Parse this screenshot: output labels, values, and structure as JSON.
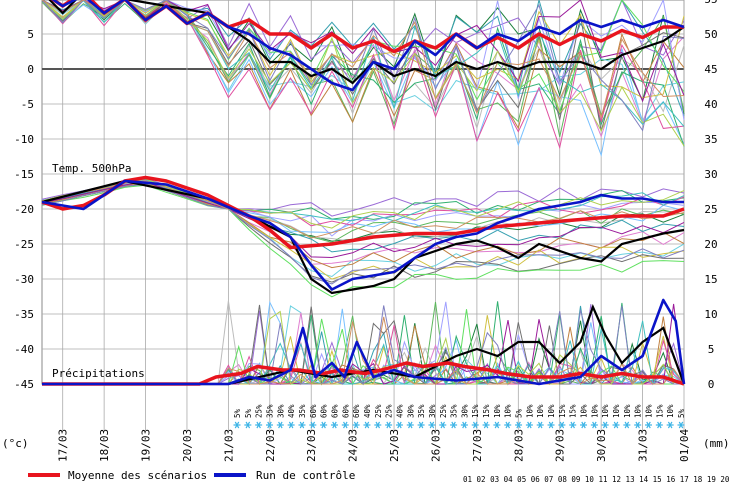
{
  "chart_data": {
    "type": "line",
    "y_left_unit": "(°c)",
    "y_right_unit": "(mm)",
    "y_left_ticks": [
      "5",
      "0",
      "-5",
      "-10",
      "-15",
      "-20",
      "-25",
      "-30",
      "-35",
      "-40",
      "-45"
    ],
    "y_left_range": [
      -45,
      10
    ],
    "y_right_ticks": [
      "55",
      "50",
      "45",
      "40",
      "35",
      "30",
      "25",
      "20",
      "15",
      "10",
      "5",
      "0"
    ],
    "y_right_range": [
      0,
      55
    ],
    "x_dates": [
      "17/03",
      "18/03",
      "19/03",
      "20/03",
      "21/03",
      "22/03",
      "23/03",
      "24/03",
      "25/03",
      "26/03",
      "27/03",
      "28/03",
      "29/03",
      "30/03",
      "31/03",
      "01/04"
    ],
    "x_range_days": [
      0,
      15.5
    ],
    "labels": {
      "temp500": "Temp. 500hPa",
      "precip": "Précipitations"
    },
    "probabilities": [
      "5%",
      "5%",
      "25%",
      "35%",
      "30%",
      "40%",
      "35%",
      "60%",
      "60%",
      "60%",
      "60%",
      "60%",
      "40%",
      "25%",
      "25%",
      "40%",
      "30%",
      "35%",
      "30%",
      "25%",
      "35%",
      "30%",
      "15%",
      "15%",
      "10%",
      "10%",
      "5%",
      "10%",
      "10%",
      "10%",
      "15%",
      "15%",
      "10%",
      "10%",
      "10%",
      "10%",
      "10%",
      "10%",
      "10%",
      "15%",
      "10%",
      "5%"
    ],
    "bottom_numbers": "01 02 03 04 05 06 07 08 09 10 11 12 13 14 15 16 17 18 19 20",
    "series": [
      {
        "name": "Moyenne des scénarios",
        "color": "#e8141e",
        "temp850": [
          [
            0,
            11
          ],
          [
            0.5,
            9
          ],
          [
            1,
            11
          ],
          [
            1.5,
            8
          ],
          [
            2,
            10
          ],
          [
            2.5,
            7
          ],
          [
            3,
            9
          ],
          [
            3.5,
            6.5
          ],
          [
            4,
            8
          ],
          [
            4.5,
            6
          ],
          [
            5,
            7
          ],
          [
            5.5,
            5
          ],
          [
            6,
            5
          ],
          [
            6.5,
            3
          ],
          [
            7,
            5
          ],
          [
            7.5,
            3
          ],
          [
            8,
            4
          ],
          [
            8.5,
            2.5
          ],
          [
            9,
            4
          ],
          [
            9.5,
            3
          ],
          [
            10,
            5
          ],
          [
            10.5,
            3
          ],
          [
            11,
            4.5
          ],
          [
            11.5,
            3
          ],
          [
            12,
            5
          ],
          [
            12.5,
            3.5
          ],
          [
            13,
            5
          ],
          [
            13.5,
            4
          ],
          [
            14,
            5.5
          ],
          [
            14.5,
            4.5
          ],
          [
            15,
            6
          ],
          [
            15.5,
            6
          ]
        ],
        "temp500": [
          [
            0,
            -19
          ],
          [
            0.5,
            -20
          ],
          [
            1,
            -19.5
          ],
          [
            1.5,
            -18
          ],
          [
            2,
            -16
          ],
          [
            2.5,
            -15.5
          ],
          [
            3,
            -16
          ],
          [
            3.5,
            -17
          ],
          [
            4,
            -18
          ],
          [
            4.5,
            -19.5
          ],
          [
            5,
            -21
          ],
          [
            5.5,
            -23
          ],
          [
            6,
            -25.5
          ],
          [
            7,
            -25
          ],
          [
            8,
            -24
          ],
          [
            9,
            -23.5
          ],
          [
            10,
            -23.5
          ],
          [
            11,
            -22.5
          ],
          [
            12,
            -22
          ],
          [
            13,
            -21.5
          ],
          [
            14,
            -21
          ],
          [
            15,
            -21
          ],
          [
            15.5,
            -20
          ]
        ],
        "precip": [
          [
            0,
            0
          ],
          [
            3.8,
            0
          ],
          [
            4.2,
            1
          ],
          [
            4.8,
            1.5
          ],
          [
            5.2,
            2.5
          ],
          [
            5.8,
            2
          ],
          [
            6.2,
            2
          ],
          [
            6.8,
            1.5
          ],
          [
            7.2,
            2
          ],
          [
            7.8,
            1.5
          ],
          [
            8.2,
            2
          ],
          [
            8.8,
            3
          ],
          [
            9.2,
            2.5
          ],
          [
            9.8,
            3
          ],
          [
            10.2,
            2.5
          ],
          [
            10.8,
            2
          ],
          [
            11.2,
            1.5
          ],
          [
            11.8,
            1
          ],
          [
            12.5,
            1
          ],
          [
            13,
            1.5
          ],
          [
            13.5,
            1
          ],
          [
            14,
            1.5
          ],
          [
            14.5,
            1
          ],
          [
            15,
            1
          ],
          [
            15.5,
            0
          ]
        ]
      },
      {
        "name": "Run de contrôle",
        "color": "#0a14c8",
        "temp850": [
          [
            0,
            11
          ],
          [
            0.5,
            9
          ],
          [
            1,
            10.5
          ],
          [
            1.5,
            8
          ],
          [
            2,
            10
          ],
          [
            2.5,
            7
          ],
          [
            3,
            9
          ],
          [
            3.5,
            6.5
          ],
          [
            4,
            8
          ],
          [
            4.5,
            6
          ],
          [
            5,
            5
          ],
          [
            5.5,
            3
          ],
          [
            6,
            2
          ],
          [
            6.5,
            0
          ],
          [
            7,
            -2
          ],
          [
            7.5,
            -3
          ],
          [
            8,
            1
          ],
          [
            8.5,
            0
          ],
          [
            9,
            4
          ],
          [
            9.5,
            2
          ],
          [
            10,
            5
          ],
          [
            10.5,
            3
          ],
          [
            11,
            5
          ],
          [
            11.5,
            4
          ],
          [
            12,
            6
          ],
          [
            12.5,
            5
          ],
          [
            13,
            7
          ],
          [
            13.5,
            6
          ],
          [
            14,
            7
          ],
          [
            14.5,
            6
          ],
          [
            15,
            7
          ],
          [
            15.5,
            6
          ]
        ],
        "temp500": [
          [
            0,
            -19
          ],
          [
            1,
            -20
          ],
          [
            2,
            -16
          ],
          [
            3,
            -16.5
          ],
          [
            4,
            -18.5
          ],
          [
            5,
            -21
          ],
          [
            5.5,
            -22
          ],
          [
            6,
            -24
          ],
          [
            6.5,
            -28
          ],
          [
            7,
            -31.5
          ],
          [
            7.5,
            -30
          ],
          [
            8,
            -29.5
          ],
          [
            8.5,
            -29
          ],
          [
            9,
            -27
          ],
          [
            9.5,
            -25
          ],
          [
            10,
            -24
          ],
          [
            10.5,
            -23.5
          ],
          [
            11,
            -22
          ],
          [
            11.5,
            -21
          ],
          [
            12,
            -20
          ],
          [
            12.5,
            -19.5
          ],
          [
            13,
            -19
          ],
          [
            13.5,
            -18
          ],
          [
            14,
            -18.5
          ],
          [
            14.5,
            -18.5
          ],
          [
            15,
            -19
          ],
          [
            15.5,
            -19
          ]
        ],
        "precip": [
          [
            0,
            0
          ],
          [
            4.5,
            0
          ],
          [
            5,
            1
          ],
          [
            5.5,
            0.5
          ],
          [
            6,
            2
          ],
          [
            6.3,
            8
          ],
          [
            6.6,
            1
          ],
          [
            7,
            3
          ],
          [
            7.3,
            1
          ],
          [
            7.6,
            6
          ],
          [
            8,
            1
          ],
          [
            8.5,
            2
          ],
          [
            9,
            1
          ],
          [
            10,
            0.5
          ],
          [
            11,
            1
          ],
          [
            12,
            0
          ],
          [
            13,
            1
          ],
          [
            13.5,
            4
          ],
          [
            14,
            2
          ],
          [
            14.5,
            4
          ],
          [
            15,
            12
          ],
          [
            15.3,
            9
          ],
          [
            15.5,
            0
          ]
        ]
      }
    ]
  }
}
